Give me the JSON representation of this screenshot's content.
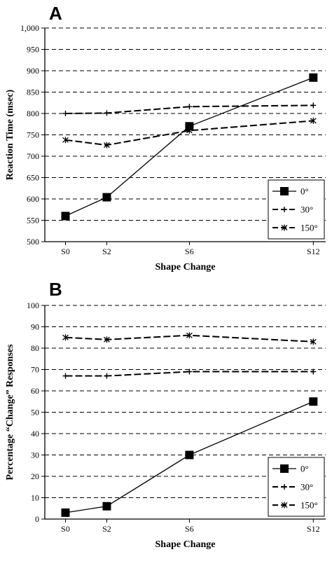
{
  "chart_data": [
    {
      "type": "line",
      "panel_label": "A",
      "xlabel": "Shape Change",
      "ylabel": "Reaction Time (msec)",
      "categories": [
        "S0",
        "S2",
        "S6",
        "S12"
      ],
      "x": [
        0,
        2,
        6,
        12
      ],
      "ylim": [
        500,
        1000
      ],
      "yticks": [
        500,
        550,
        600,
        650,
        700,
        750,
        800,
        850,
        900,
        950,
        1000
      ],
      "ytick_labels": [
        "500",
        "550",
        "600",
        "650",
        "700",
        "750",
        "800",
        "850",
        "900",
        "950",
        "1,000"
      ],
      "grid": "horizontal dashed",
      "legend_position": "lower-right",
      "series": [
        {
          "name": "0°",
          "values": [
            560,
            604,
            770,
            884
          ],
          "line_style": "solid",
          "marker": "square"
        },
        {
          "name": "30°",
          "values": [
            800,
            801,
            816,
            819
          ],
          "line_style": "dashed",
          "marker": "plus"
        },
        {
          "name": "150°",
          "values": [
            738,
            726,
            760,
            783
          ],
          "line_style": "dashed",
          "marker": "star"
        }
      ]
    },
    {
      "type": "line",
      "panel_label": "B",
      "xlabel": "Shape Change",
      "ylabel": "Percentage “Change” Responses",
      "categories": [
        "S0",
        "S2",
        "S6",
        "S12"
      ],
      "x": [
        0,
        2,
        6,
        12
      ],
      "ylim": [
        0,
        100
      ],
      "yticks": [
        0,
        10,
        20,
        30,
        40,
        50,
        60,
        70,
        80,
        90,
        100
      ],
      "ytick_labels": [
        "0",
        "10",
        "20",
        "30",
        "40",
        "50",
        "60",
        "70",
        "80",
        "90",
        "100"
      ],
      "grid": "horizontal dashed",
      "legend_position": "lower-right",
      "series": [
        {
          "name": "0°",
          "values": [
            3,
            6,
            30,
            55
          ],
          "line_style": "solid",
          "marker": "square"
        },
        {
          "name": "30°",
          "values": [
            67,
            67,
            69,
            69
          ],
          "line_style": "dashed",
          "marker": "plus"
        },
        {
          "name": "150°",
          "values": [
            85,
            84,
            86,
            83
          ],
          "line_style": "dashed",
          "marker": "star"
        }
      ]
    }
  ]
}
